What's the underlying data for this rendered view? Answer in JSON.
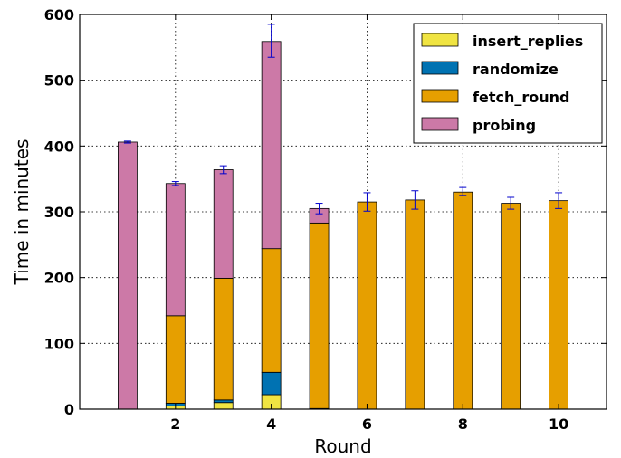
{
  "chart_data": {
    "type": "bar",
    "stacked": true,
    "xlabel": "Round",
    "ylabel": "Time in minutes",
    "ylim": [
      0,
      600
    ],
    "xlim": [
      0,
      11
    ],
    "yticks": [
      0,
      100,
      200,
      300,
      400,
      500,
      600
    ],
    "xticks": [
      2,
      4,
      6,
      8,
      10
    ],
    "grid": true,
    "legend_position": "top-right",
    "x": [
      1,
      2,
      3,
      4,
      5,
      6,
      7,
      8,
      9,
      10
    ],
    "series": [
      {
        "name": "insert_replies",
        "color": "#f0e442",
        "values": [
          0,
          5,
          10,
          22,
          0,
          0,
          0,
          0,
          0,
          0
        ]
      },
      {
        "name": "randomize",
        "color": "#0072b2",
        "values": [
          0,
          4,
          4,
          34,
          1,
          0,
          0,
          0,
          0,
          0
        ]
      },
      {
        "name": "fetch_round",
        "color": "#e69f00",
        "values": [
          0,
          133,
          185,
          188,
          282,
          315,
          318,
          330,
          313,
          317
        ]
      },
      {
        "name": "probing",
        "color": "#cc79a7",
        "values": [
          406,
          201,
          165,
          315,
          22,
          0,
          0,
          0,
          0,
          0
        ]
      }
    ],
    "error_bars": [
      {
        "x": 1,
        "center": 406,
        "err": 1.5
      },
      {
        "x": 2,
        "center": 343,
        "err": 3
      },
      {
        "x": 3,
        "center": 364,
        "err": 6
      },
      {
        "x": 4,
        "center": 560,
        "err": 25
      },
      {
        "x": 5,
        "center": 305,
        "err": 8
      },
      {
        "x": 6,
        "center": 315,
        "err": 14
      },
      {
        "x": 7,
        "center": 318,
        "err": 14
      },
      {
        "x": 8,
        "center": 331,
        "err": 6
      },
      {
        "x": 9,
        "center": 313,
        "err": 9
      },
      {
        "x": 10,
        "center": 317,
        "err": 12
      }
    ],
    "error_color": "#0000cc"
  }
}
